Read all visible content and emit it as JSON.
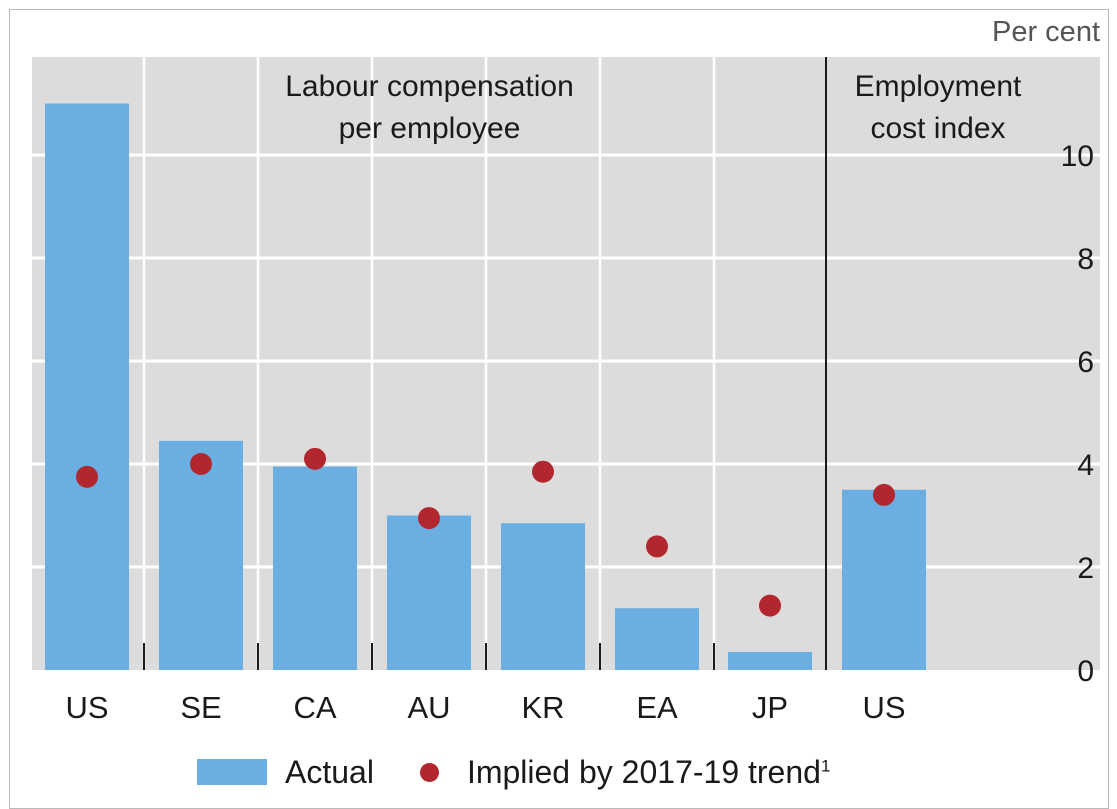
{
  "chart_data": {
    "type": "bar",
    "unit_label": "Per cent",
    "panels": [
      {
        "title_lines": [
          "Labour compensation",
          "per employee"
        ]
      },
      {
        "title_lines": [
          "Employment",
          "cost index"
        ]
      }
    ],
    "categories": [
      "US",
      "SE",
      "CA",
      "AU",
      "KR",
      "EA",
      "JP",
      "US"
    ],
    "series": [
      {
        "name": "Actual",
        "mark": "bar",
        "color": "#6aaee2",
        "values": [
          11.0,
          4.45,
          3.95,
          3.0,
          2.85,
          1.2,
          0.35,
          3.5
        ]
      },
      {
        "name": "Implied by 2017-19 trend",
        "mark": "dot",
        "color": "#b2272d",
        "values": [
          3.75,
          4.0,
          4.1,
          2.95,
          3.85,
          2.4,
          1.25,
          3.4
        ]
      }
    ],
    "ylim": [
      0,
      12
    ],
    "yticks": [
      0,
      2,
      4,
      6,
      8,
      10
    ],
    "legend": {
      "actual": "Actual",
      "implied": "Implied by 2017-19 trend",
      "footnote_mark": "1"
    },
    "grid": true,
    "legend_position": "bottom"
  }
}
